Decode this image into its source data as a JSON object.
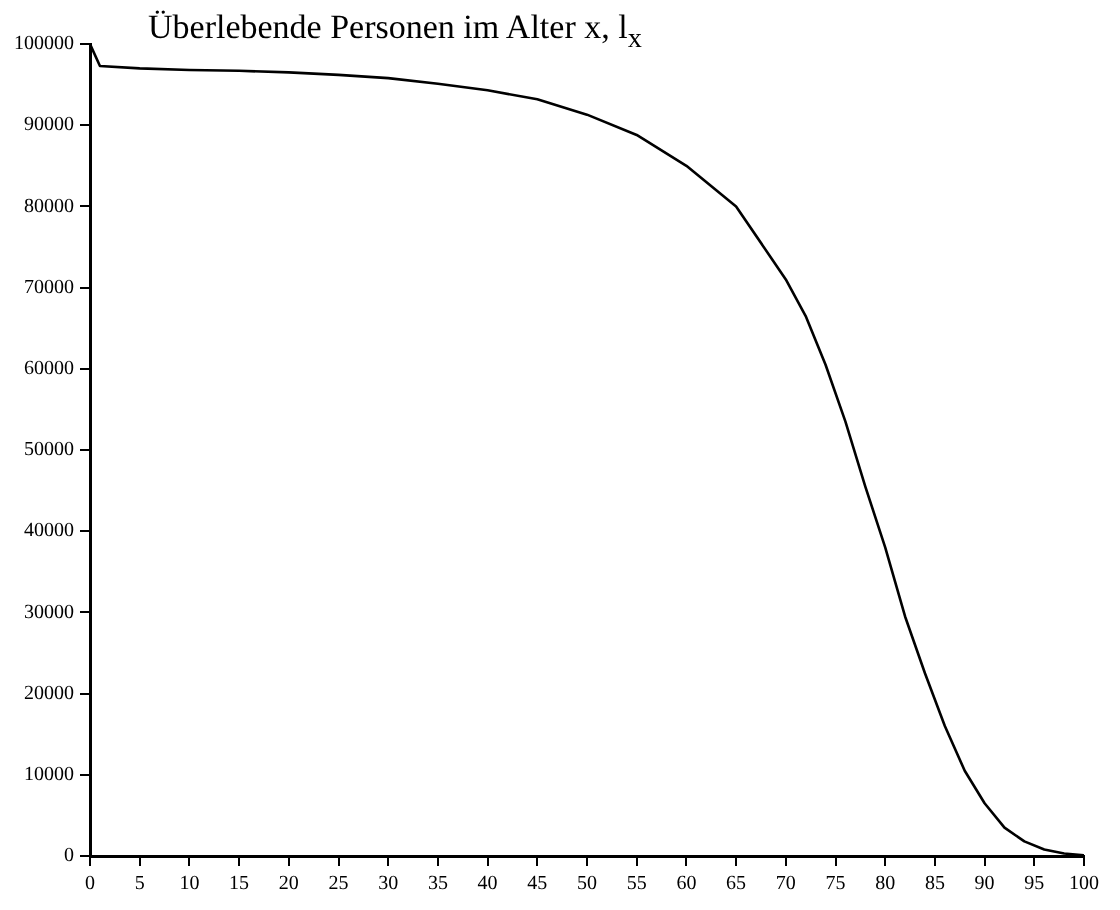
{
  "chart_data": {
    "type": "line",
    "title": "Überlebende Personen im Alter x, l$_{x}$",
    "x": [
      0,
      1,
      5,
      10,
      15,
      20,
      25,
      30,
      35,
      40,
      45,
      50,
      55,
      60,
      65,
      70,
      72,
      74,
      76,
      78,
      80,
      82,
      84,
      86,
      88,
      90,
      92,
      94,
      96,
      98,
      100
    ],
    "series": [
      {
        "color": "#000000",
        "values": [
          100000,
          97300,
          97000,
          96800,
          96700,
          96500,
          96200,
          95800,
          95100,
          94300,
          93200,
          91300,
          88800,
          85000,
          80000,
          71000,
          66500,
          60500,
          53500,
          45500,
          38000,
          29500,
          22500,
          16000,
          10500,
          6500,
          3500,
          1800,
          800,
          300,
          100
        ]
      }
    ],
    "xlim": [
      0,
      100
    ],
    "xticks": [
      0,
      5,
      10,
      15,
      20,
      25,
      30,
      35,
      40,
      45,
      50,
      55,
      60,
      65,
      70,
      75,
      80,
      85,
      90,
      95,
      100
    ],
    "ylim": [
      0,
      100000
    ],
    "yticks": [
      0,
      10000,
      20000,
      30000,
      40000,
      50000,
      60000,
      70000,
      80000,
      90000,
      100000
    ],
    "grid": false,
    "legend": false,
    "marker": "none",
    "line_style": "solid"
  }
}
